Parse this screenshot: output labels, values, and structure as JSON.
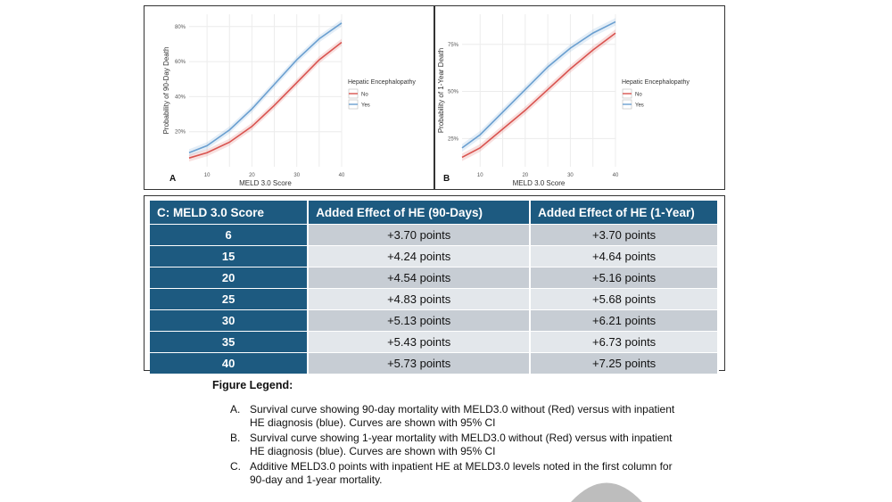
{
  "chart_data": [
    {
      "type": "line",
      "panel_label": "A",
      "xlabel": "MELD 3.0 Score",
      "ylabel": "Probability of 90-Day Death",
      "xlim": [
        6,
        40
      ],
      "ylim": [
        0,
        0.87
      ],
      "x_ticks": [
        10,
        20,
        30,
        40
      ],
      "y_ticks": [
        0.2,
        0.4,
        0.6,
        0.8
      ],
      "y_tick_labels": [
        "20%",
        "40%",
        "60%",
        "80%"
      ],
      "legend_title": "Hepatic Encephalopathy",
      "legend_position": "right",
      "grid": true,
      "x": [
        6,
        10,
        15,
        20,
        25,
        30,
        35,
        40
      ],
      "series": [
        {
          "name": "No",
          "color": "#d9534f",
          "values": [
            0.05,
            0.08,
            0.14,
            0.23,
            0.35,
            0.48,
            0.61,
            0.71
          ],
          "ci_width": 0.02
        },
        {
          "name": "Yes",
          "color": "#6a9fd0",
          "values": [
            0.08,
            0.12,
            0.21,
            0.33,
            0.47,
            0.61,
            0.73,
            0.82
          ],
          "ci_width": 0.02
        }
      ]
    },
    {
      "type": "line",
      "panel_label": "B",
      "xlabel": "MELD 3.0 Score",
      "ylabel": "Probability of 1-Year Death",
      "xlim": [
        6,
        40
      ],
      "ylim": [
        0.1,
        0.91
      ],
      "x_ticks": [
        10,
        20,
        30,
        40
      ],
      "y_ticks": [
        0.25,
        0.5,
        0.75
      ],
      "y_tick_labels": [
        "25%",
        "50%",
        "75%"
      ],
      "legend_title": "Hepatic Encephalopathy",
      "legend_position": "right",
      "grid": true,
      "x": [
        6,
        10,
        15,
        20,
        25,
        30,
        35,
        40
      ],
      "series": [
        {
          "name": "No",
          "color": "#d9534f",
          "values": [
            0.15,
            0.2,
            0.3,
            0.4,
            0.51,
            0.62,
            0.72,
            0.81
          ],
          "ci_width": 0.02
        },
        {
          "name": "Yes",
          "color": "#6a9fd0",
          "values": [
            0.2,
            0.27,
            0.39,
            0.51,
            0.63,
            0.73,
            0.81,
            0.87
          ],
          "ci_width": 0.02
        }
      ]
    },
    {
      "type": "table",
      "columns": [
        "C: MELD 3.0 Score",
        "Added Effect of HE (90-Days)",
        "Added Effect of HE (1-Year)"
      ],
      "rows": [
        [
          "6",
          "+3.70 points",
          "+3.70 points"
        ],
        [
          "15",
          "+4.24 points",
          "+4.64 points"
        ],
        [
          "20",
          "+4.54 points",
          "+5.16 points"
        ],
        [
          "25",
          "+4.83 points",
          "+5.68 points"
        ],
        [
          "30",
          "+5.13 points",
          "+6.21 points"
        ],
        [
          "35",
          "+5.43 points",
          "+6.73 points"
        ],
        [
          "40",
          "+5.73 points",
          "+7.25 points"
        ]
      ]
    }
  ],
  "legend": {
    "title": "Figure Legend:",
    "items": [
      {
        "marker": "A.",
        "text": "Survival curve showing 90-day mortality with MELD3.0 without (Red) versus with inpatient HE diagnosis (blue). Curves are shown with 95% CI"
      },
      {
        "marker": "B.",
        "text": "Survival curve showing 1-year mortality with MELD3.0 without (Red) versus with inpatient HE diagnosis (blue). Curves are shown with 95% CI"
      },
      {
        "marker": "C.",
        "text": "Additive MELD3.0 points with inpatient HE at MELD3.0 levels noted in the first column for 90-day and 1-year mortality."
      }
    ]
  },
  "colors": {
    "table_header": "#1d5a80",
    "row_dark": "#c7cdd4",
    "row_light": "#e3e7eb"
  }
}
